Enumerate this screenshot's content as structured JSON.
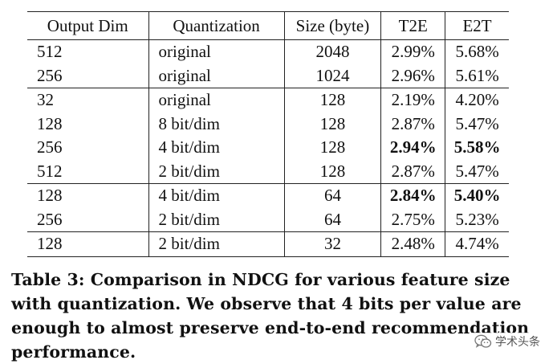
{
  "table": {
    "headers": [
      "Output Dim",
      "Quantization",
      "Size (byte)",
      "T2E",
      "E2T"
    ],
    "rows": [
      {
        "dim": "512",
        "quant": "original",
        "size": "2048",
        "t2e": "2.99%",
        "e2t": "5.68%",
        "group_start": false,
        "bold_t2e": false,
        "bold_e2t": false
      },
      {
        "dim": "256",
        "quant": "original",
        "size": "1024",
        "t2e": "2.96%",
        "e2t": "5.61%",
        "group_start": false,
        "bold_t2e": false,
        "bold_e2t": false
      },
      {
        "dim": "32",
        "quant": "original",
        "size": "128",
        "t2e": "2.19%",
        "e2t": "4.20%",
        "group_start": true,
        "bold_t2e": false,
        "bold_e2t": false
      },
      {
        "dim": "128",
        "quant": "8 bit/dim",
        "size": "128",
        "t2e": "2.87%",
        "e2t": "5.47%",
        "group_start": false,
        "bold_t2e": false,
        "bold_e2t": false
      },
      {
        "dim": "256",
        "quant": "4 bit/dim",
        "size": "128",
        "t2e": "2.94%",
        "e2t": "5.58%",
        "group_start": false,
        "bold_t2e": true,
        "bold_e2t": true
      },
      {
        "dim": "512",
        "quant": "2 bit/dim",
        "size": "128",
        "t2e": "2.87%",
        "e2t": "5.47%",
        "group_start": false,
        "bold_t2e": false,
        "bold_e2t": false
      },
      {
        "dim": "128",
        "quant": "4 bit/dim",
        "size": "64",
        "t2e": "2.84%",
        "e2t": "5.40%",
        "group_start": true,
        "bold_t2e": true,
        "bold_e2t": true
      },
      {
        "dim": "256",
        "quant": "2 bit/dim",
        "size": "64",
        "t2e": "2.75%",
        "e2t": "5.23%",
        "group_start": false,
        "bold_t2e": false,
        "bold_e2t": false
      },
      {
        "dim": "128",
        "quant": "2 bit/dim",
        "size": "32",
        "t2e": "2.48%",
        "e2t": "4.74%",
        "group_start": true,
        "bold_t2e": false,
        "bold_e2t": false
      }
    ]
  },
  "caption": {
    "text": "Table 3: Comparison in NDCG for various feature size with quantization. We observe that 4 bits per value are enough to almost preserve end-to-end recommendation performance."
  },
  "watermark": {
    "icon": "wechat-icon",
    "text": "学术头条"
  }
}
